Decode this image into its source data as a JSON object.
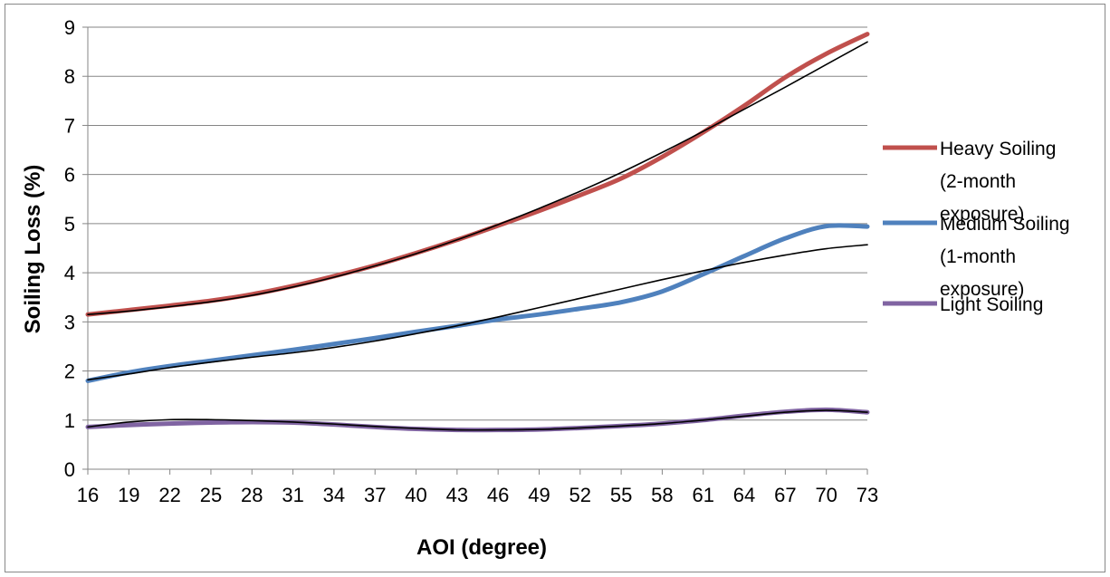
{
  "chart_data": {
    "type": "line",
    "title": "",
    "xlabel": "AOI (degree)",
    "ylabel": "Soiling Loss (%)",
    "x": [
      16,
      19,
      22,
      25,
      28,
      31,
      34,
      37,
      40,
      43,
      46,
      49,
      52,
      55,
      58,
      61,
      64,
      67,
      70,
      73
    ],
    "x_tick_labels": [
      "16",
      "19",
      "22",
      "25",
      "28",
      "31",
      "34",
      "37",
      "40",
      "43",
      "46",
      "49",
      "52",
      "55",
      "58",
      "61",
      "64",
      "67",
      "70",
      "73"
    ],
    "xlim": [
      16,
      73
    ],
    "ylim": [
      0,
      9
    ],
    "y_ticks": [
      0,
      1,
      2,
      3,
      4,
      5,
      6,
      7,
      8,
      9
    ],
    "y_tick_labels": [
      "0",
      "1",
      "2",
      "3",
      "4",
      "5",
      "6",
      "7",
      "8",
      "9"
    ],
    "grid": "horizontal",
    "legend_position": "right",
    "series": [
      {
        "name": "Heavy Soiling (2-month exposure)",
        "legend_lines": [
          "Heavy Soiling",
          "(2-month",
          "exposure)"
        ],
        "color": "#c0504d",
        "values": [
          3.15,
          3.24,
          3.33,
          3.43,
          3.56,
          3.73,
          3.93,
          4.15,
          4.4,
          4.67,
          4.96,
          5.26,
          5.58,
          5.92,
          6.36,
          6.86,
          7.4,
          7.98,
          8.46,
          8.86
        ],
        "trendline_values": [
          3.15,
          3.22,
          3.31,
          3.41,
          3.54,
          3.71,
          3.91,
          4.14,
          4.39,
          4.67,
          4.98,
          5.31,
          5.66,
          6.04,
          6.45,
          6.88,
          7.33,
          7.78,
          8.24,
          8.7
        ]
      },
      {
        "name": "Medium Soiling (1-month exposure)",
        "legend_lines": [
          "Medium Soiling",
          "(1-month",
          "exposure)"
        ],
        "color": "#4f81bd",
        "values": [
          1.8,
          1.97,
          2.1,
          2.21,
          2.32,
          2.43,
          2.55,
          2.67,
          2.8,
          2.92,
          3.05,
          3.15,
          3.27,
          3.4,
          3.62,
          3.97,
          4.34,
          4.7,
          4.95,
          4.94
        ],
        "trendline_values": [
          1.82,
          1.94,
          2.07,
          2.18,
          2.28,
          2.37,
          2.48,
          2.61,
          2.76,
          2.92,
          3.1,
          3.29,
          3.48,
          3.67,
          3.86,
          4.04,
          4.21,
          4.36,
          4.49,
          4.57
        ]
      },
      {
        "name": "Light Soiling",
        "legend_lines": [
          "Light Soiling"
        ],
        "color": "#8064a2",
        "values": [
          0.86,
          0.9,
          0.93,
          0.95,
          0.96,
          0.95,
          0.91,
          0.86,
          0.82,
          0.8,
          0.8,
          0.81,
          0.84,
          0.88,
          0.93,
          1.0,
          1.09,
          1.17,
          1.21,
          1.16
        ],
        "trendline_values": [
          0.86,
          0.96,
          1.01,
          1.01,
          0.99,
          0.96,
          0.92,
          0.87,
          0.83,
          0.8,
          0.8,
          0.81,
          0.84,
          0.88,
          0.93,
          1.0,
          1.08,
          1.16,
          1.2,
          1.16
        ]
      }
    ]
  }
}
